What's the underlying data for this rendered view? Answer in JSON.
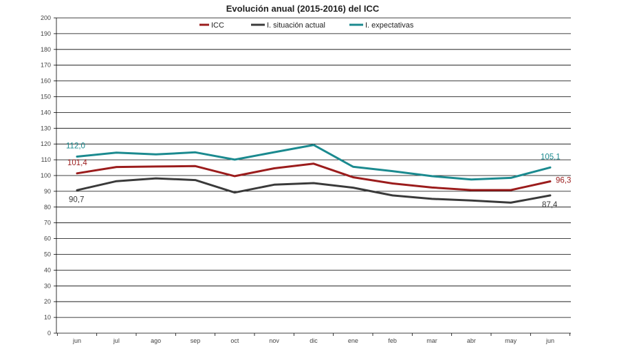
{
  "chart_data": {
    "type": "line",
    "title": "Evolución anual (2015-2016) del ICC",
    "categories": [
      "jun",
      "jul",
      "ago",
      "sep",
      "oct",
      "nov",
      "dic",
      "ene",
      "feb",
      "mar",
      "abr",
      "may",
      "jun"
    ],
    "yticks": [
      0,
      10,
      20,
      30,
      40,
      50,
      60,
      70,
      80,
      90,
      100,
      110,
      120,
      130,
      140,
      150,
      160,
      170,
      180,
      190,
      200
    ],
    "ylim": [
      0,
      200
    ],
    "grid": true,
    "legend_position": "top",
    "series": [
      {
        "name": "ICC",
        "color": "#9b1c1c",
        "values": [
          101.4,
          105.4,
          105.7,
          106.0,
          99.6,
          104.6,
          107.5,
          98.9,
          95.0,
          92.4,
          90.8,
          90.8,
          96.3
        ],
        "labels": [
          {
            "index": 0,
            "text": "101,4"
          },
          {
            "index": 12,
            "text": "96,3"
          }
        ]
      },
      {
        "name": "I. situación actual",
        "color": "#3a3a3a",
        "values": [
          90.7,
          96.4,
          98.2,
          97.1,
          89.2,
          94.2,
          95.2,
          92.3,
          87.4,
          85.2,
          84.2,
          82.8,
          87.4
        ],
        "labels": [
          {
            "index": 0,
            "text": "90,7"
          },
          {
            "index": 12,
            "text": "87,4"
          }
        ]
      },
      {
        "name": "I. expectativas",
        "color": "#1b8a8f",
        "values": [
          112.0,
          114.5,
          113.4,
          114.7,
          110.1,
          114.8,
          119.4,
          105.6,
          102.8,
          99.6,
          97.5,
          98.5,
          105.1
        ],
        "labels": [
          {
            "index": 0,
            "text": "112,0"
          },
          {
            "index": 12,
            "text": "105,1"
          }
        ]
      }
    ]
  }
}
